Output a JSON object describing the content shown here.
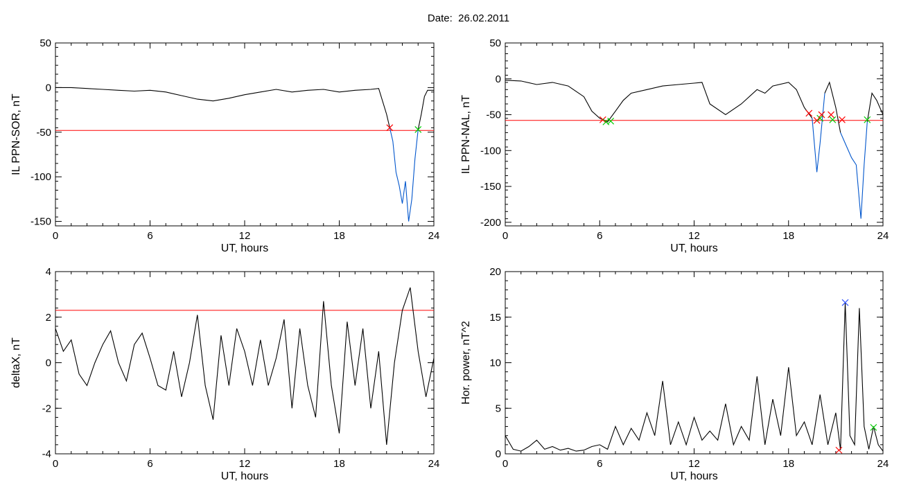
{
  "figure": {
    "title": "Date:  26.02.2011"
  },
  "colors": {
    "threshold": "#ff0000",
    "highlight": "#0055cc",
    "trace": "#000000",
    "marker_red": "#ff0000",
    "marker_green": "#00cc00",
    "marker_blue": "#3355ff"
  },
  "chart_data": [
    {
      "type": "line",
      "xlabel": "UT, hours",
      "ylabel": "IL PPN-SOR, nT",
      "xlim": [
        0,
        24
      ],
      "ylim": [
        -155,
        50
      ],
      "xticks": [
        0,
        6,
        12,
        18,
        24
      ],
      "yticks": [
        50,
        0,
        -50,
        -100,
        -150
      ],
      "threshold": -48,
      "highlight_range": [
        21.2,
        23.0
      ],
      "series": [
        {
          "x": [
            0,
            1,
            2,
            3,
            4,
            5,
            6,
            7,
            8,
            9,
            10,
            11,
            12,
            13,
            14,
            15,
            16,
            17,
            18,
            19,
            20,
            20.5,
            21,
            21.2,
            21.4,
            21.6,
            21.8,
            22.0,
            22.2,
            22.4,
            22.6,
            22.8,
            23.0,
            23.2,
            23.4,
            23.6,
            24
          ],
          "y": [
            0,
            0,
            -1,
            -2,
            -3,
            -4,
            -3,
            -5,
            -9,
            -13,
            -15,
            -12,
            -8,
            -5,
            -2,
            -5,
            -3,
            -2,
            -5,
            -3,
            -2,
            -1,
            -30,
            -45,
            -60,
            -95,
            -110,
            -130,
            -105,
            -150,
            -125,
            -80,
            -47,
            -30,
            -10,
            -3,
            -3
          ]
        }
      ],
      "markers": [
        {
          "x": 21.2,
          "y": -45,
          "color": "red"
        },
        {
          "x": 23.0,
          "y": -47,
          "color": "green"
        }
      ]
    },
    {
      "type": "line",
      "xlabel": "UT, hours",
      "ylabel": "IL PPN-NAL, nT",
      "xlim": [
        0,
        24
      ],
      "ylim": [
        -205,
        50
      ],
      "xticks": [
        0,
        6,
        12,
        18,
        24
      ],
      "yticks": [
        50,
        0,
        -50,
        -100,
        -150,
        -200
      ],
      "threshold": -58,
      "highlight_ranges": [
        [
          19.5,
          20.5
        ],
        [
          21.2,
          23.0
        ]
      ],
      "series": [
        {
          "x": [
            0,
            1,
            2,
            3,
            4,
            5,
            5.5,
            6,
            6.5,
            7,
            7.5,
            8,
            9,
            10,
            11,
            12,
            12.5,
            13,
            14,
            15,
            16,
            16.5,
            17,
            18,
            18.5,
            19,
            19.5,
            19.8,
            20.0,
            20.3,
            20.6,
            21.0,
            21.3,
            21.6,
            22.0,
            22.3,
            22.6,
            22.8,
            23.0,
            23.3,
            23.6,
            24
          ],
          "y": [
            -2,
            -3,
            -8,
            -5,
            -10,
            -25,
            -45,
            -55,
            -60,
            -45,
            -30,
            -20,
            -15,
            -10,
            -8,
            -6,
            -5,
            -35,
            -50,
            -35,
            -15,
            -20,
            -10,
            -5,
            -15,
            -40,
            -55,
            -130,
            -90,
            -20,
            -5,
            -40,
            -75,
            -90,
            -110,
            -120,
            -195,
            -120,
            -60,
            -20,
            -30,
            -50
          ]
        }
      ],
      "markers": [
        {
          "x": 6.2,
          "y": -57,
          "color": "red"
        },
        {
          "x": 6.4,
          "y": -60,
          "color": "green"
        },
        {
          "x": 6.7,
          "y": -59,
          "color": "green"
        },
        {
          "x": 19.3,
          "y": -48,
          "color": "red"
        },
        {
          "x": 19.8,
          "y": -58,
          "color": "red"
        },
        {
          "x": 20.0,
          "y": -55,
          "color": "green"
        },
        {
          "x": 20.1,
          "y": -50,
          "color": "red"
        },
        {
          "x": 20.7,
          "y": -50,
          "color": "red"
        },
        {
          "x": 20.8,
          "y": -57,
          "color": "green"
        },
        {
          "x": 21.4,
          "y": -57,
          "color": "red"
        },
        {
          "x": 23.0,
          "y": -57,
          "color": "green"
        }
      ]
    },
    {
      "type": "line",
      "xlabel": "UT, hours",
      "ylabel": "deltaX, nT",
      "xlim": [
        0,
        24
      ],
      "ylim": [
        -4,
        4
      ],
      "xticks": [
        0,
        6,
        12,
        18,
        24
      ],
      "yticks": [
        4,
        2,
        0,
        -2,
        -4
      ],
      "threshold": 2.3,
      "series": [
        {
          "x": [
            0,
            0.5,
            1,
            1.5,
            2,
            2.5,
            3,
            3.5,
            4,
            4.5,
            5,
            5.5,
            6,
            6.5,
            7,
            7.5,
            8,
            8.5,
            9,
            9.5,
            10,
            10.5,
            11,
            11.5,
            12,
            12.5,
            13,
            13.5,
            14,
            14.5,
            15,
            15.5,
            16,
            16.5,
            17,
            17.5,
            18,
            18.5,
            19,
            19.5,
            20,
            20.5,
            21,
            21.5,
            22,
            22.5,
            23,
            23.5,
            24
          ],
          "y": [
            1.5,
            0.5,
            1.0,
            -0.5,
            -1.0,
            0.0,
            0.8,
            1.4,
            0.0,
            -0.8,
            0.8,
            1.3,
            0.2,
            -1.0,
            -1.2,
            0.5,
            -1.5,
            0.0,
            2.1,
            -1.0,
            -2.5,
            1.2,
            -1.0,
            1.5,
            0.5,
            -1.0,
            1.0,
            -1.0,
            0.2,
            1.9,
            -2.0,
            1.5,
            -1.0,
            -2.4,
            2.7,
            -1.0,
            -3.1,
            1.8,
            -1.0,
            1.5,
            -2.0,
            0.5,
            -3.6,
            0.0,
            2.3,
            3.3,
            0.5,
            -1.5,
            0.2
          ]
        }
      ],
      "markers": []
    },
    {
      "type": "line",
      "xlabel": "UT, hours",
      "ylabel": "Hor. power, nT^2",
      "xlim": [
        0,
        24
      ],
      "ylim": [
        0,
        20
      ],
      "xticks": [
        0,
        6,
        12,
        18,
        24
      ],
      "yticks": [
        20,
        15,
        10,
        5,
        0
      ],
      "series": [
        {
          "x": [
            0,
            0.5,
            1,
            1.5,
            2,
            2.5,
            3,
            3.5,
            4,
            4.5,
            5,
            5.5,
            6,
            6.5,
            7,
            7.5,
            8,
            8.5,
            9,
            9.5,
            10,
            10.5,
            11,
            11.5,
            12,
            12.5,
            13,
            13.5,
            14,
            14.5,
            15,
            15.5,
            16,
            16.5,
            17,
            17.5,
            18,
            18.5,
            19,
            19.5,
            20,
            20.5,
            21,
            21.3,
            21.6,
            21.9,
            22.2,
            22.5,
            22.8,
            23.1,
            23.4,
            23.7,
            24
          ],
          "y": [
            2.0,
            0.5,
            0.3,
            0.8,
            1.5,
            0.5,
            0.8,
            0.4,
            0.6,
            0.3,
            0.4,
            0.8,
            1.0,
            0.5,
            3.0,
            1.0,
            2.8,
            1.5,
            4.5,
            2.0,
            8.0,
            1.0,
            3.5,
            1.0,
            4.0,
            1.5,
            2.5,
            1.5,
            5.5,
            1.0,
            3.0,
            1.5,
            8.5,
            1.0,
            6.0,
            2.0,
            9.5,
            2.0,
            3.5,
            1.0,
            6.5,
            1.0,
            4.5,
            0.4,
            16.6,
            2.0,
            1.0,
            16.0,
            3.0,
            0.5,
            3.0,
            1.0,
            0.3
          ]
        }
      ],
      "markers": [
        {
          "x": 21.6,
          "y": 16.6,
          "color": "blue"
        },
        {
          "x": 21.2,
          "y": 0.4,
          "color": "red"
        },
        {
          "x": 23.4,
          "y": 2.9,
          "color": "green"
        }
      ]
    }
  ]
}
